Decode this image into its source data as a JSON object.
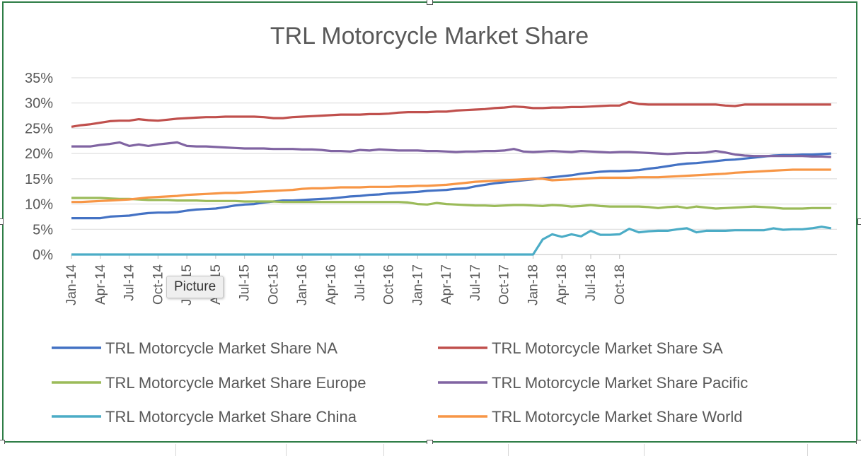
{
  "chart_data": {
    "type": "line",
    "title": "TRL Motorcycle Market Share",
    "xlabel": "",
    "ylabel": "",
    "ylim": [
      0,
      0.35
    ],
    "y_ticks": [
      "0%",
      "5%",
      "10%",
      "15%",
      "20%",
      "25%",
      "30%",
      "35%"
    ],
    "x_tick_labels": [
      "Jan-14",
      "Apr-14",
      "Jul-14",
      "Oct-14",
      "Jan-15",
      "Apr-15",
      "Jul-15",
      "Oct-15",
      "Jan-16",
      "Apr-16",
      "Jul-16",
      "Oct-16",
      "Jan-17",
      "Apr-17",
      "Jul-17",
      "Oct-17",
      "Jan-18",
      "Apr-18",
      "Jul-18",
      "Oct-18"
    ],
    "x_start": "Jan-14",
    "x_end": "Dec-18",
    "grid": true,
    "legend_position": "bottom",
    "series": [
      {
        "name": "TRL Motorcycle Market Share NA",
        "color": "#4472c4",
        "values": [
          0.072,
          0.072,
          0.072,
          0.072,
          0.075,
          0.076,
          0.077,
          0.08,
          0.082,
          0.083,
          0.083,
          0.084,
          0.087,
          0.089,
          0.09,
          0.091,
          0.094,
          0.097,
          0.099,
          0.1,
          0.103,
          0.105,
          0.107,
          0.107,
          0.108,
          0.109,
          0.11,
          0.111,
          0.113,
          0.115,
          0.116,
          0.118,
          0.119,
          0.121,
          0.122,
          0.123,
          0.124,
          0.126,
          0.127,
          0.128,
          0.13,
          0.131,
          0.135,
          0.138,
          0.141,
          0.143,
          0.145,
          0.147,
          0.149,
          0.151,
          0.153,
          0.155,
          0.157,
          0.16,
          0.162,
          0.164,
          0.165,
          0.165,
          0.166,
          0.167,
          0.17,
          0.172,
          0.175,
          0.178,
          0.18,
          0.181,
          0.183,
          0.185,
          0.187,
          0.188,
          0.19,
          0.192,
          0.194,
          0.196,
          0.197,
          0.197,
          0.198,
          0.198,
          0.199,
          0.2
        ]
      },
      {
        "name": "TRL Motorcycle Market Share SA",
        "color": "#c0504d",
        "values": [
          0.253,
          0.256,
          0.258,
          0.261,
          0.264,
          0.265,
          0.265,
          0.268,
          0.266,
          0.265,
          0.267,
          0.269,
          0.27,
          0.271,
          0.272,
          0.272,
          0.273,
          0.273,
          0.273,
          0.273,
          0.272,
          0.27,
          0.27,
          0.272,
          0.273,
          0.274,
          0.275,
          0.276,
          0.277,
          0.277,
          0.277,
          0.278,
          0.278,
          0.279,
          0.281,
          0.282,
          0.282,
          0.282,
          0.283,
          0.283,
          0.285,
          0.286,
          0.287,
          0.288,
          0.29,
          0.291,
          0.293,
          0.292,
          0.29,
          0.29,
          0.291,
          0.291,
          0.292,
          0.292,
          0.293,
          0.294,
          0.295,
          0.295,
          0.302,
          0.298,
          0.297,
          0.297,
          0.297,
          0.297,
          0.297,
          0.297,
          0.297,
          0.297,
          0.295,
          0.294,
          0.297,
          0.297,
          0.297,
          0.297,
          0.297,
          0.297,
          0.297,
          0.297,
          0.297,
          0.297
        ]
      },
      {
        "name": "TRL Motorcycle Market Share Europe",
        "color": "#9bbb59",
        "values": [
          0.112,
          0.112,
          0.112,
          0.112,
          0.111,
          0.11,
          0.11,
          0.109,
          0.108,
          0.108,
          0.108,
          0.107,
          0.107,
          0.107,
          0.106,
          0.106,
          0.106,
          0.106,
          0.105,
          0.105,
          0.105,
          0.105,
          0.104,
          0.104,
          0.104,
          0.104,
          0.104,
          0.104,
          0.104,
          0.104,
          0.104,
          0.104,
          0.104,
          0.104,
          0.104,
          0.103,
          0.1,
          0.099,
          0.102,
          0.1,
          0.099,
          0.098,
          0.097,
          0.097,
          0.096,
          0.097,
          0.098,
          0.098,
          0.097,
          0.096,
          0.098,
          0.097,
          0.095,
          0.096,
          0.098,
          0.096,
          0.095,
          0.095,
          0.095,
          0.095,
          0.094,
          0.092,
          0.094,
          0.095,
          0.092,
          0.095,
          0.093,
          0.091,
          0.092,
          0.093,
          0.094,
          0.095,
          0.094,
          0.093,
          0.091,
          0.091,
          0.091,
          0.092,
          0.092,
          0.092
        ]
      },
      {
        "name": "TRL Motorcycle Market Share Pacific",
        "color": "#8064a2",
        "values": [
          0.214,
          0.214,
          0.214,
          0.217,
          0.219,
          0.222,
          0.215,
          0.218,
          0.215,
          0.218,
          0.22,
          0.222,
          0.215,
          0.214,
          0.214,
          0.213,
          0.212,
          0.211,
          0.21,
          0.21,
          0.21,
          0.209,
          0.209,
          0.209,
          0.208,
          0.208,
          0.207,
          0.205,
          0.205,
          0.204,
          0.207,
          0.206,
          0.208,
          0.207,
          0.206,
          0.206,
          0.206,
          0.205,
          0.205,
          0.204,
          0.203,
          0.204,
          0.204,
          0.205,
          0.205,
          0.206,
          0.209,
          0.204,
          0.203,
          0.204,
          0.205,
          0.204,
          0.203,
          0.205,
          0.204,
          0.203,
          0.202,
          0.203,
          0.203,
          0.202,
          0.201,
          0.2,
          0.199,
          0.2,
          0.201,
          0.201,
          0.202,
          0.205,
          0.202,
          0.198,
          0.196,
          0.195,
          0.195,
          0.195,
          0.195,
          0.195,
          0.195,
          0.194,
          0.194,
          0.193
        ]
      },
      {
        "name": "TRL Motorcycle Market Share China",
        "color": "#4bacc6",
        "values": [
          0.0,
          0.0,
          0.0,
          0.0,
          0.0,
          0.0,
          0.0,
          0.0,
          0.0,
          0.0,
          0.0,
          0.0,
          0.0,
          0.0,
          0.0,
          0.0,
          0.0,
          0.0,
          0.0,
          0.0,
          0.0,
          0.0,
          0.0,
          0.0,
          0.0,
          0.0,
          0.0,
          0.0,
          0.0,
          0.0,
          0.0,
          0.0,
          0.0,
          0.0,
          0.0,
          0.0,
          0.0,
          0.0,
          0.0,
          0.0,
          0.0,
          0.0,
          0.0,
          0.0,
          0.0,
          0.0,
          0.0,
          0.0,
          0.0,
          0.03,
          0.04,
          0.035,
          0.04,
          0.036,
          0.047,
          0.039,
          0.039,
          0.04,
          0.051,
          0.044,
          0.046,
          0.047,
          0.047,
          0.05,
          0.052,
          0.044,
          0.047,
          0.047,
          0.047,
          0.048,
          0.048,
          0.048,
          0.048,
          0.052,
          0.049,
          0.05,
          0.05,
          0.052,
          0.055,
          0.052
        ]
      },
      {
        "name": "TRL Motorcycle Market Share World",
        "color": "#f79646",
        "values": [
          0.104,
          0.104,
          0.105,
          0.106,
          0.107,
          0.108,
          0.109,
          0.111,
          0.113,
          0.114,
          0.115,
          0.116,
          0.118,
          0.119,
          0.12,
          0.121,
          0.122,
          0.122,
          0.123,
          0.124,
          0.125,
          0.126,
          0.127,
          0.128,
          0.13,
          0.131,
          0.131,
          0.132,
          0.133,
          0.133,
          0.133,
          0.134,
          0.134,
          0.134,
          0.135,
          0.135,
          0.136,
          0.136,
          0.137,
          0.138,
          0.14,
          0.142,
          0.144,
          0.145,
          0.146,
          0.147,
          0.148,
          0.149,
          0.15,
          0.15,
          0.147,
          0.148,
          0.149,
          0.15,
          0.151,
          0.152,
          0.152,
          0.152,
          0.152,
          0.153,
          0.153,
          0.153,
          0.154,
          0.155,
          0.156,
          0.157,
          0.158,
          0.159,
          0.16,
          0.162,
          0.163,
          0.164,
          0.165,
          0.166,
          0.167,
          0.168,
          0.168,
          0.168,
          0.168,
          0.168
        ]
      }
    ]
  },
  "tooltip": {
    "text": "Picture"
  }
}
